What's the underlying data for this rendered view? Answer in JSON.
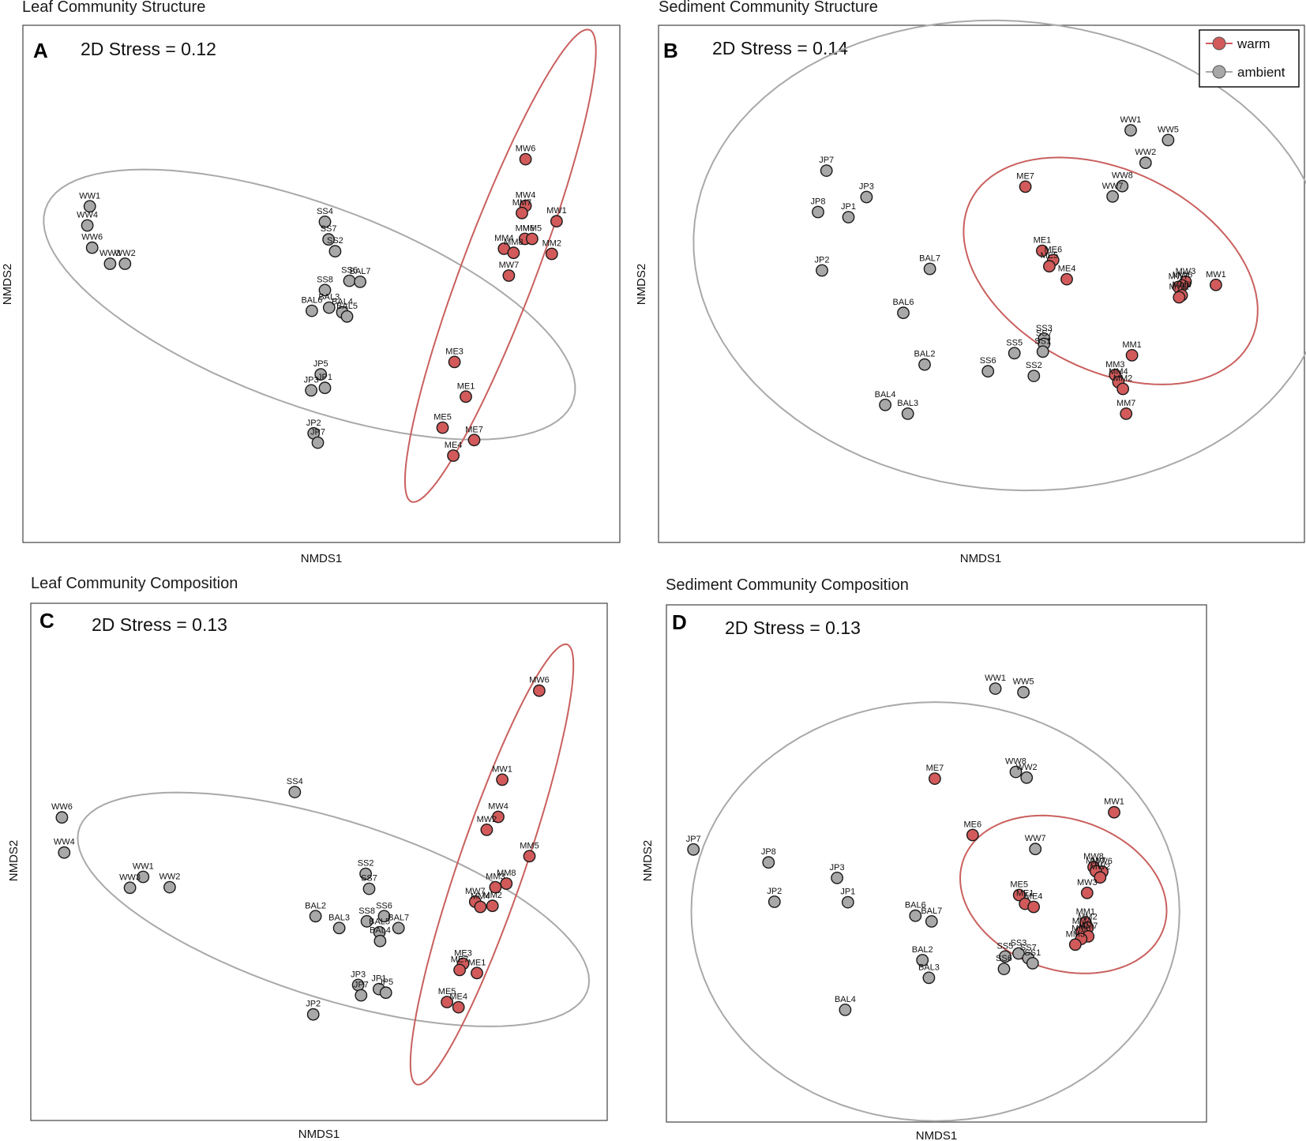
{
  "legend": {
    "warm_label": "warm",
    "ambient_label": "ambient",
    "warm_color": "#d25a5a",
    "ambient_color": "#a8a8a8",
    "warm_ellipse_color": "#c9605e",
    "ambient_ellipse_color": "#a9a9a9"
  },
  "chart_data": [
    {
      "type": "scatter",
      "panel": "A",
      "title": "Leaf Community Structure",
      "stress": "2D Stress = 0.12",
      "xlabel": "NMDS1",
      "ylabel": "NMDS2",
      "xlim": [
        0,
        100
      ],
      "ylim": [
        0,
        100
      ],
      "series": [
        {
          "name": "warm",
          "points": [
            {
              "label": "MW6",
              "x": 84.2,
              "y": 74.1
            },
            {
              "label": "MW4",
              "x": 84.2,
              "y": 65.1
            },
            {
              "label": "MM7",
              "x": 83.6,
              "y": 63.7
            },
            {
              "label": "MW1",
              "x": 89.4,
              "y": 62.1
            },
            {
              "label": "MM6",
              "x": 84.1,
              "y": 58.7
            },
            {
              "label": "MM5",
              "x": 85.3,
              "y": 58.7
            },
            {
              "label": "MM4",
              "x": 80.6,
              "y": 56.8
            },
            {
              "label": "MM8",
              "x": 82.2,
              "y": 56.0
            },
            {
              "label": "MM2",
              "x": 88.6,
              "y": 55.8
            },
            {
              "label": "MW7",
              "x": 81.4,
              "y": 51.6
            },
            {
              "label": "ME3",
              "x": 72.3,
              "y": 34.9
            },
            {
              "label": "ME1",
              "x": 74.2,
              "y": 28.2
            },
            {
              "label": "ME5",
              "x": 70.3,
              "y": 22.2
            },
            {
              "label": "ME7",
              "x": 75.6,
              "y": 19.8
            },
            {
              "label": "ME4",
              "x": 72.1,
              "y": 16.8
            }
          ]
        },
        {
          "name": "ambient",
          "points": [
            {
              "label": "WW1",
              "x": 11.2,
              "y": 65.0
            },
            {
              "label": "WW4",
              "x": 10.8,
              "y": 61.3
            },
            {
              "label": "WW6",
              "x": 11.6,
              "y": 57.0
            },
            {
              "label": "WW3",
              "x": 14.6,
              "y": 53.9
            },
            {
              "label": "WW2",
              "x": 17.1,
              "y": 53.9
            },
            {
              "label": "SS4",
              "x": 50.6,
              "y": 62.0
            },
            {
              "label": "SS7",
              "x": 51.2,
              "y": 58.6
            },
            {
              "label": "SS2",
              "x": 52.3,
              "y": 56.3
            },
            {
              "label": "SS6",
              "x": 54.7,
              "y": 50.6
            },
            {
              "label": "BAL7",
              "x": 56.5,
              "y": 50.4
            },
            {
              "label": "SS8",
              "x": 50.6,
              "y": 48.8
            },
            {
              "label": "BAL3",
              "x": 51.3,
              "y": 45.4
            },
            {
              "label": "BAL6",
              "x": 48.4,
              "y": 44.8
            },
            {
              "label": "BAL4",
              "x": 53.5,
              "y": 44.5
            },
            {
              "label": "BAL5",
              "x": 54.3,
              "y": 43.7
            },
            {
              "label": "JP5",
              "x": 49.9,
              "y": 32.5
            },
            {
              "label": "JP1",
              "x": 50.6,
              "y": 29.9
            },
            {
              "label": "JP3",
              "x": 48.3,
              "y": 29.4
            },
            {
              "label": "JP2",
              "x": 48.7,
              "y": 21.1
            },
            {
              "label": "JP7",
              "x": 49.4,
              "y": 19.3
            }
          ]
        }
      ],
      "ellipses": [
        {
          "group": "ambient",
          "center": [
            48.0,
            46.0
          ],
          "semi_axes": [
            48.0,
            19.0
          ],
          "angle_deg": -24
        },
        {
          "group": "warm",
          "center": [
            80.0,
            53.5
          ],
          "semi_axes": [
            48.0,
            6.3
          ],
          "angle_deg": 72
        }
      ]
    },
    {
      "type": "scatter",
      "panel": "B",
      "title": "Sediment Community Structure",
      "stress": "2D Stress = 0.14",
      "xlabel": "NMDS1",
      "ylabel": "NMDS2",
      "xlim": [
        0,
        100
      ],
      "ylim": [
        0,
        100
      ],
      "series": [
        {
          "name": "warm",
          "points": [
            {
              "label": "ME7",
              "x": 56.8,
              "y": 68.8
            },
            {
              "label": "ME1",
              "x": 59.4,
              "y": 56.4
            },
            {
              "label": "ME6",
              "x": 61.1,
              "y": 54.6
            },
            {
              "label": "ME5",
              "x": 60.5,
              "y": 53.4
            },
            {
              "label": "ME4",
              "x": 63.2,
              "y": 50.9
            },
            {
              "label": "MW3",
              "x": 81.6,
              "y": 50.4
            },
            {
              "label": "MW6",
              "x": 81.1,
              "y": 49.7
            },
            {
              "label": "MW7",
              "x": 80.5,
              "y": 49.4
            },
            {
              "label": "MW1",
              "x": 86.3,
              "y": 49.8
            },
            {
              "label": "MM8",
              "x": 81.0,
              "y": 47.8
            },
            {
              "label": "MW2",
              "x": 80.6,
              "y": 47.4
            },
            {
              "label": "MM1",
              "x": 73.3,
              "y": 36.2
            },
            {
              "label": "MM3",
              "x": 70.7,
              "y": 32.4
            },
            {
              "label": "MM4",
              "x": 71.2,
              "y": 31.0
            },
            {
              "label": "MM2",
              "x": 71.9,
              "y": 29.7
            },
            {
              "label": "MM7",
              "x": 72.4,
              "y": 24.9
            }
          ]
        },
        {
          "name": "ambient",
          "points": [
            {
              "label": "WW1",
              "x": 73.1,
              "y": 79.7
            },
            {
              "label": "WW5",
              "x": 78.9,
              "y": 77.8
            },
            {
              "label": "WW2",
              "x": 75.4,
              "y": 73.4
            },
            {
              "label": "WW8",
              "x": 71.8,
              "y": 68.9
            },
            {
              "label": "WW7",
              "x": 70.3,
              "y": 66.9
            },
            {
              "label": "JP7",
              "x": 26.0,
              "y": 71.9
            },
            {
              "label": "JP3",
              "x": 32.2,
              "y": 66.8
            },
            {
              "label": "JP8",
              "x": 24.7,
              "y": 63.9
            },
            {
              "label": "JP1",
              "x": 29.4,
              "y": 62.9
            },
            {
              "label": "JP2",
              "x": 25.3,
              "y": 52.6
            },
            {
              "label": "BAL7",
              "x": 42.0,
              "y": 52.9
            },
            {
              "label": "BAL6",
              "x": 37.9,
              "y": 44.4
            },
            {
              "label": "SS3",
              "x": 59.7,
              "y": 39.4
            },
            {
              "label": "SS7",
              "x": 59.7,
              "y": 38.4
            },
            {
              "label": "SS5",
              "x": 55.1,
              "y": 36.6
            },
            {
              "label": "SS1",
              "x": 59.5,
              "y": 36.9
            },
            {
              "label": "BAL2",
              "x": 41.2,
              "y": 34.4
            },
            {
              "label": "SS6",
              "x": 51.0,
              "y": 33.1
            },
            {
              "label": "SS2",
              "x": 58.1,
              "y": 32.2
            },
            {
              "label": "BAL4",
              "x": 35.1,
              "y": 26.6
            },
            {
              "label": "BAL3",
              "x": 38.6,
              "y": 24.9
            }
          ]
        }
      ],
      "ellipses": [
        {
          "group": "ambient",
          "center": [
            54.5,
            55.5
          ],
          "semi_axes": [
            49.5,
            45.0
          ],
          "angle_deg": -18
        },
        {
          "group": "warm",
          "center": [
            70.0,
            52.5
          ],
          "semi_axes": [
            26.0,
            18.0
          ],
          "angle_deg": -42
        }
      ]
    },
    {
      "type": "scatter",
      "panel": "C",
      "title": "Leaf Community Composition",
      "stress": "2D Stress = 0.13",
      "xlabel": "NMDS1",
      "ylabel": "NMDS2",
      "xlim": [
        0,
        100
      ],
      "ylim": [
        0,
        100
      ],
      "series": [
        {
          "name": "warm",
          "points": [
            {
              "label": "MW6",
              "x": 88.2,
              "y": 83.1
            },
            {
              "label": "MW1",
              "x": 81.8,
              "y": 65.9
            },
            {
              "label": "MW4",
              "x": 81.1,
              "y": 58.7
            },
            {
              "label": "MW2",
              "x": 79.1,
              "y": 56.2
            },
            {
              "label": "MM5",
              "x": 86.5,
              "y": 51.1
            },
            {
              "label": "MM8",
              "x": 82.5,
              "y": 45.8
            },
            {
              "label": "MM3",
              "x": 80.6,
              "y": 45.1
            },
            {
              "label": "MW7",
              "x": 77.1,
              "y": 42.3
            },
            {
              "label": "MM4",
              "x": 78.0,
              "y": 41.3
            },
            {
              "label": "MM2",
              "x": 80.1,
              "y": 41.5
            },
            {
              "label": "ME3",
              "x": 75.0,
              "y": 30.3
            },
            {
              "label": "ME7",
              "x": 74.4,
              "y": 29.1
            },
            {
              "label": "ME1",
              "x": 77.4,
              "y": 28.5
            },
            {
              "label": "ME5",
              "x": 72.2,
              "y": 22.9
            },
            {
              "label": "ME4",
              "x": 74.2,
              "y": 21.9
            }
          ]
        },
        {
          "name": "ambient",
          "points": [
            {
              "label": "SS4",
              "x": 45.8,
              "y": 63.5
            },
            {
              "label": "WW6",
              "x": 5.4,
              "y": 58.6
            },
            {
              "label": "WW4",
              "x": 5.8,
              "y": 51.8
            },
            {
              "label": "WW1",
              "x": 19.5,
              "y": 47.1
            },
            {
              "label": "WW3",
              "x": 17.2,
              "y": 45.0
            },
            {
              "label": "WW2",
              "x": 24.1,
              "y": 45.1
            },
            {
              "label": "SS2",
              "x": 58.1,
              "y": 47.7
            },
            {
              "label": "SS7",
              "x": 58.7,
              "y": 44.8
            },
            {
              "label": "BAL2",
              "x": 49.4,
              "y": 39.5
            },
            {
              "label": "SS6",
              "x": 61.3,
              "y": 39.5
            },
            {
              "label": "SS8",
              "x": 58.3,
              "y": 38.5
            },
            {
              "label": "BAL7",
              "x": 63.8,
              "y": 37.2
            },
            {
              "label": "BAL5",
              "x": 60.5,
              "y": 36.4
            },
            {
              "label": "BAL3",
              "x": 53.5,
              "y": 37.2
            },
            {
              "label": "BAL4",
              "x": 60.6,
              "y": 34.7
            },
            {
              "label": "JP3",
              "x": 56.8,
              "y": 26.2
            },
            {
              "label": "JP1",
              "x": 60.4,
              "y": 25.4
            },
            {
              "label": "JP5",
              "x": 61.6,
              "y": 24.7
            },
            {
              "label": "JP7",
              "x": 57.3,
              "y": 24.2
            },
            {
              "label": "JP2",
              "x": 49.0,
              "y": 20.5
            }
          ]
        }
      ],
      "ellipses": [
        {
          "group": "ambient",
          "center": [
            52.5,
            40.8
          ],
          "semi_axes": [
            46.8,
            17.0
          ],
          "angle_deg": -20
        },
        {
          "group": "warm",
          "center": [
            80.0,
            49.5
          ],
          "semi_axes": [
            44.5,
            5.8
          ],
          "angle_deg": 73
        }
      ]
    },
    {
      "type": "scatter",
      "panel": "D",
      "title": "Sediment Community Composition",
      "stress": "2D Stress = 0.13",
      "xlabel": "NMDS1",
      "ylabel": "NMDS2",
      "xlim": [
        0,
        100
      ],
      "ylim": [
        0,
        100
      ],
      "series": [
        {
          "name": "warm",
          "points": [
            {
              "label": "ME7",
              "x": 49.7,
              "y": 66.4
            },
            {
              "label": "MW1",
              "x": 82.9,
              "y": 59.9
            },
            {
              "label": "ME6",
              "x": 56.7,
              "y": 55.5
            },
            {
              "label": "MW8",
              "x": 79.1,
              "y": 49.3
            },
            {
              "label": "MW6",
              "x": 80.7,
              "y": 48.4
            },
            {
              "label": "MW7",
              "x": 79.5,
              "y": 48.5
            },
            {
              "label": "MW2",
              "x": 80.3,
              "y": 47.3
            },
            {
              "label": "MW3",
              "x": 77.9,
              "y": 44.3
            },
            {
              "label": "ME5",
              "x": 65.3,
              "y": 43.9
            },
            {
              "label": "ME1",
              "x": 66.4,
              "y": 42.2
            },
            {
              "label": "ME4",
              "x": 68.0,
              "y": 41.6
            },
            {
              "label": "MM1",
              "x": 77.6,
              "y": 38.6
            },
            {
              "label": "MM2",
              "x": 78.0,
              "y": 37.6
            },
            {
              "label": "MM4",
              "x": 76.9,
              "y": 36.8
            },
            {
              "label": "MM7",
              "x": 78.1,
              "y": 35.9
            },
            {
              "label": "MM8",
              "x": 76.8,
              "y": 35.4
            },
            {
              "label": "MM3",
              "x": 75.7,
              "y": 34.3
            }
          ]
        },
        {
          "name": "ambient",
          "points": [
            {
              "label": "WW1",
              "x": 60.9,
              "y": 83.8
            },
            {
              "label": "WW5",
              "x": 66.1,
              "y": 83.1
            },
            {
              "label": "WW8",
              "x": 64.7,
              "y": 67.7
            },
            {
              "label": "WW2",
              "x": 66.7,
              "y": 66.6
            },
            {
              "label": "JP7",
              "x": 5.0,
              "y": 52.7
            },
            {
              "label": "WW7",
              "x": 68.3,
              "y": 52.8
            },
            {
              "label": "JP8",
              "x": 18.9,
              "y": 50.2
            },
            {
              "label": "JP3",
              "x": 31.6,
              "y": 47.2
            },
            {
              "label": "JP2",
              "x": 20.0,
              "y": 42.6
            },
            {
              "label": "JP1",
              "x": 33.6,
              "y": 42.5
            },
            {
              "label": "BAL6",
              "x": 46.1,
              "y": 39.9
            },
            {
              "label": "BAL7",
              "x": 49.1,
              "y": 38.8
            },
            {
              "label": "SS3",
              "x": 65.2,
              "y": 32.6
            },
            {
              "label": "SS5",
              "x": 62.7,
              "y": 32.0
            },
            {
              "label": "SS7",
              "x": 67.0,
              "y": 31.7
            },
            {
              "label": "SS1",
              "x": 67.8,
              "y": 30.7
            },
            {
              "label": "BAL2",
              "x": 47.4,
              "y": 31.3
            },
            {
              "label": "SS6",
              "x": 62.5,
              "y": 29.6
            },
            {
              "label": "BAL3",
              "x": 48.6,
              "y": 27.9
            },
            {
              "label": "BAL4",
              "x": 33.1,
              "y": 21.7
            }
          ]
        }
      ],
      "ellipses": [
        {
          "group": "ambient",
          "center": [
            49.8,
            40.7
          ],
          "semi_axes": [
            45.2,
            40.5
          ],
          "angle_deg": 0
        },
        {
          "group": "warm",
          "center": [
            73.5,
            44.0
          ],
          "semi_axes": [
            19.7,
            14.5
          ],
          "angle_deg": -21
        }
      ]
    }
  ]
}
